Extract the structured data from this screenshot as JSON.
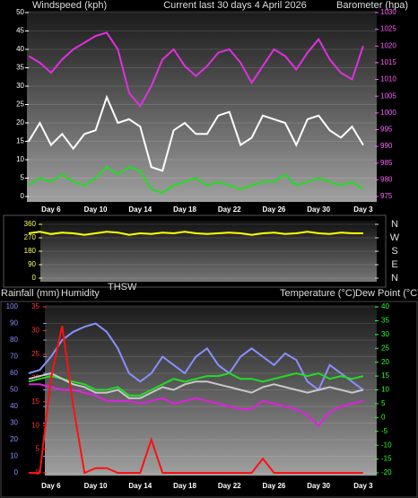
{
  "chart_data": [
    {
      "type": "line",
      "title": "Current last 30 days 4 April 2026",
      "y_label": "Windspeed (kph)",
      "y2_label": "Barometer (hpa)",
      "categories": [
        null,
        null,
        "Day 6",
        null,
        null,
        null,
        "Day 10",
        null,
        null,
        null,
        "Day 14",
        null,
        null,
        null,
        "Day 18",
        null,
        null,
        null,
        "Day 22",
        null,
        null,
        null,
        "Day 26",
        null,
        null,
        null,
        "Day 30",
        null,
        null,
        null,
        "Day 3"
      ],
      "ylim": [
        0,
        50
      ],
      "yticks": [
        0,
        5,
        10,
        15,
        20,
        25,
        30,
        35,
        40,
        45,
        50
      ],
      "y2lim": [
        975,
        1030
      ],
      "y2ticks": [
        975,
        980,
        985,
        990,
        995,
        1000,
        1005,
        1010,
        1015,
        1020,
        1025,
        1030
      ],
      "series": [
        {
          "color": "#ffffff",
          "values": [
            15,
            20,
            14,
            17,
            13,
            17,
            18,
            27,
            20,
            21,
            19,
            8,
            7,
            18,
            20,
            17,
            17,
            22,
            23,
            14,
            16,
            22,
            21,
            20,
            14,
            21,
            22,
            18,
            16,
            19,
            14
          ]
        },
        {
          "color": "#22dd22",
          "values": [
            3,
            5,
            4,
            6,
            4,
            3,
            5,
            8,
            6,
            8,
            7,
            2,
            1,
            3,
            4,
            5,
            3,
            4,
            3,
            2,
            3,
            4,
            4,
            6,
            3,
            4,
            5,
            4,
            3,
            4,
            2
          ]
        },
        {
          "color": "#e030e0",
          "axis": "y2",
          "values": [
            1017,
            1015,
            1012,
            1016,
            1019,
            1021,
            1023,
            1024,
            1019,
            1006,
            1002,
            1008,
            1016,
            1019,
            1014,
            1011,
            1014,
            1018,
            1019,
            1015,
            1009,
            1014,
            1019,
            1017,
            1013,
            1018,
            1022,
            1016,
            1012,
            1010,
            1020
          ]
        }
      ]
    },
    {
      "type": "line",
      "ylim": [
        0,
        360
      ],
      "yticks": [
        0,
        90,
        180,
        270,
        360
      ],
      "y2lim": [
        0,
        360
      ],
      "y2ticks": [
        {
          "value": 0,
          "label": "N"
        },
        {
          "value": 90,
          "label": "E"
        },
        {
          "value": 180,
          "label": "S"
        },
        {
          "value": 270,
          "label": "W"
        },
        {
          "value": 360,
          "label": "N"
        }
      ],
      "series": [
        {
          "color": "#ffff00",
          "values": [
            300,
            310,
            295,
            305,
            300,
            290,
            300,
            310,
            305,
            290,
            300,
            295,
            305,
            300,
            310,
            300,
            295,
            300,
            305,
            300,
            290,
            300,
            305,
            295,
            300,
            310,
            300,
            295,
            305,
            300,
            300
          ]
        }
      ]
    },
    {
      "type": "line",
      "annotation": "THSW",
      "y_label": "Humidity",
      "y3_label": "Rainfall (mm)",
      "y2_label": "Temperature (°C)",
      "y2_label_b": "Dew Point (°C)",
      "categories": [
        null,
        null,
        "Day 6",
        null,
        null,
        null,
        "Day 10",
        null,
        null,
        null,
        "Day 14",
        null,
        null,
        null,
        "Day 18",
        null,
        null,
        null,
        "Day 22",
        null,
        null,
        null,
        "Day 26",
        null,
        null,
        null,
        "Day 30",
        null,
        null,
        null,
        "Day 3"
      ],
      "ylim": [
        0,
        100
      ],
      "yticks": [
        0,
        10,
        20,
        30,
        40,
        50,
        60,
        70,
        80,
        90,
        100
      ],
      "y3lim": [
        0,
        35
      ],
      "y3ticks": [
        0,
        5,
        10,
        15,
        20,
        25,
        30,
        35
      ],
      "y2lim": [
        -20,
        40
      ],
      "y2ticks": [
        -20,
        -15,
        -10,
        -5,
        0,
        5,
        10,
        15,
        20,
        25,
        30,
        35,
        40
      ],
      "series": [
        {
          "color": "#8890ff",
          "values": [
            60,
            62,
            70,
            80,
            85,
            88,
            90,
            85,
            75,
            60,
            55,
            60,
            70,
            65,
            60,
            70,
            75,
            65,
            60,
            70,
            75,
            70,
            65,
            72,
            68,
            55,
            50,
            65,
            60,
            55,
            50
          ]
        },
        {
          "color": "#22dd22",
          "axis": "y2",
          "values": [
            13,
            14,
            15,
            14,
            13,
            12,
            10,
            10,
            11,
            8,
            8,
            10,
            12,
            14,
            13,
            14,
            15,
            15,
            16,
            14,
            14,
            13,
            14,
            15,
            16,
            15,
            16,
            14,
            15,
            14,
            15
          ]
        },
        {
          "color": "#c8c8c8",
          "axis": "y2",
          "values": [
            14,
            15,
            16,
            14,
            12,
            11,
            9,
            9,
            10,
            7,
            7,
            9,
            11,
            10,
            12,
            13,
            13,
            12,
            11,
            10,
            9,
            11,
            12,
            11,
            10,
            9,
            10,
            11,
            10,
            9,
            10
          ]
        },
        {
          "color": "#e020e0",
          "axis": "y2",
          "values": [
            12,
            12,
            11,
            10,
            10,
            9,
            8,
            6,
            6,
            6,
            5,
            6,
            7,
            5,
            6,
            7,
            6,
            5,
            4,
            3,
            3,
            6,
            5,
            4,
            3,
            1,
            -3,
            2,
            4,
            5,
            6
          ]
        },
        {
          "color": "#ff1010",
          "axis": "y3",
          "values": [
            0,
            0,
            20,
            31,
            14,
            0,
            1,
            1,
            0,
            0,
            0,
            7,
            0,
            0,
            0,
            0,
            0,
            0,
            0,
            0,
            0,
            3,
            0,
            0,
            0,
            0,
            0,
            0,
            0,
            0,
            0
          ]
        }
      ]
    }
  ]
}
